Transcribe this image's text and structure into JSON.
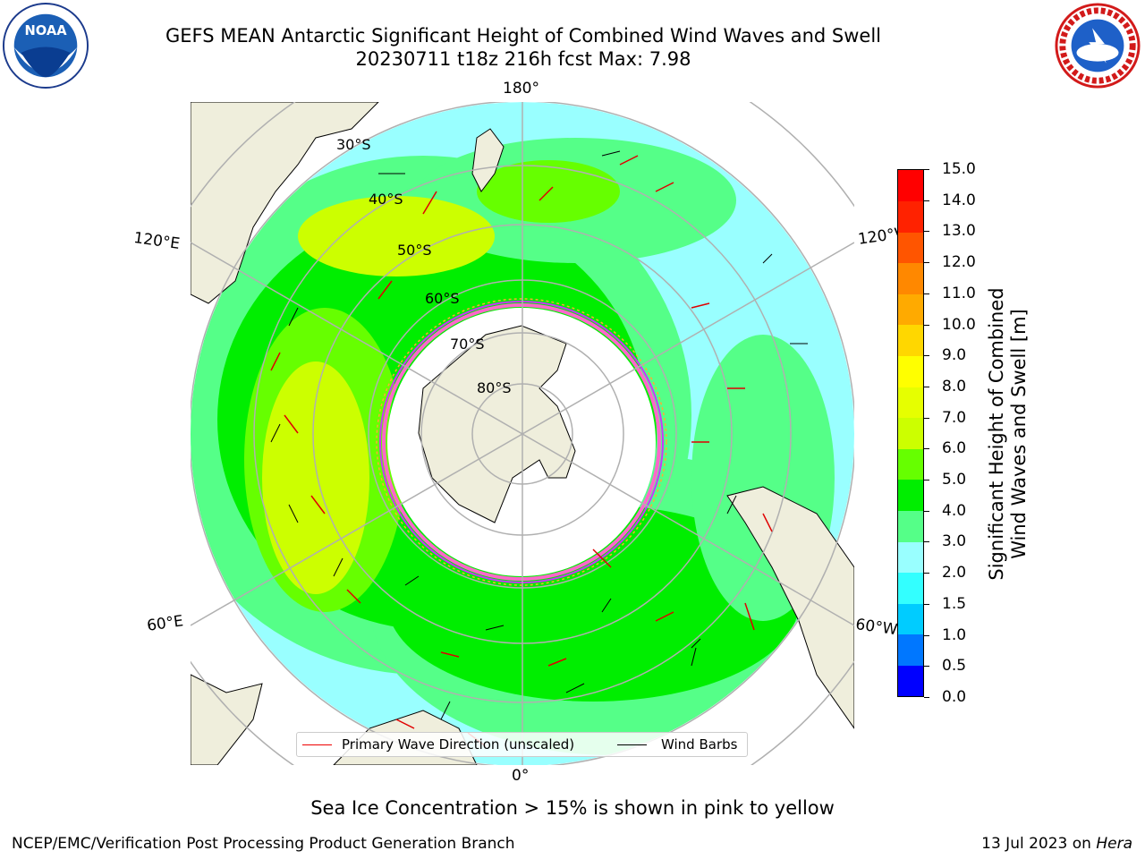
{
  "header": {
    "title_line1": "GEFS MEAN Antarctic Significant Height of Combined Wind Waves and Swell",
    "title_line2": "20230711 t18z 216h fcst   Max: 7.98"
  },
  "logos": {
    "left": {
      "name": "NOAA",
      "text": "NOAA"
    },
    "right": {
      "name": "National Weather Service"
    }
  },
  "map": {
    "projection": "south-polar-stereographic",
    "longitude_labels": {
      "top": "180°",
      "bottom": "0°",
      "upper_left": "120°E",
      "upper_right": "120°W",
      "lower_left": "60°E",
      "lower_right": "60°W"
    },
    "latitude_labels": [
      "30°S",
      "40°S",
      "50°S",
      "60°S",
      "70°S",
      "80°S"
    ],
    "colors": {
      "land": "#efeedc",
      "ice": "#ffffff",
      "ice_edge": [
        "#ff66cc",
        "#cc33ff",
        "#ffaa33"
      ],
      "grid": "#b0b0b0"
    }
  },
  "legend": {
    "wave_label": "Primary Wave Direction (unscaled)",
    "barb_label": "Wind Barbs",
    "wave_color": "#e00000",
    "barb_color": "#000000"
  },
  "colorbar": {
    "label_line1": "Significant Height of Combined",
    "label_line2": "Wind Waves and Swell [m]",
    "ticks": [
      "0.0",
      "0.5",
      "1.0",
      "1.5",
      "2.0",
      "3.0",
      "4.0",
      "5.0",
      "6.0",
      "7.0",
      "8.0",
      "9.0",
      "10.0",
      "11.0",
      "12.0",
      "13.0",
      "14.0",
      "15.0"
    ],
    "colors": [
      "#0000ff",
      "#0077ff",
      "#00ccff",
      "#33ffff",
      "#99ffff",
      "#55ff88",
      "#00ee00",
      "#66ff00",
      "#ccff00",
      "#e6ff00",
      "#ffff00",
      "#ffd700",
      "#ffaa00",
      "#ff8800",
      "#ff5500",
      "#ff2200",
      "#ff0000"
    ]
  },
  "note": "Sea Ice Concentration > 15% is shown in pink to yellow",
  "footer": {
    "left": "NCEP/EMC/Verification Post Processing Product Generation Branch",
    "right_prefix": "13 Jul 2023 on ",
    "right_host": "Hera"
  }
}
